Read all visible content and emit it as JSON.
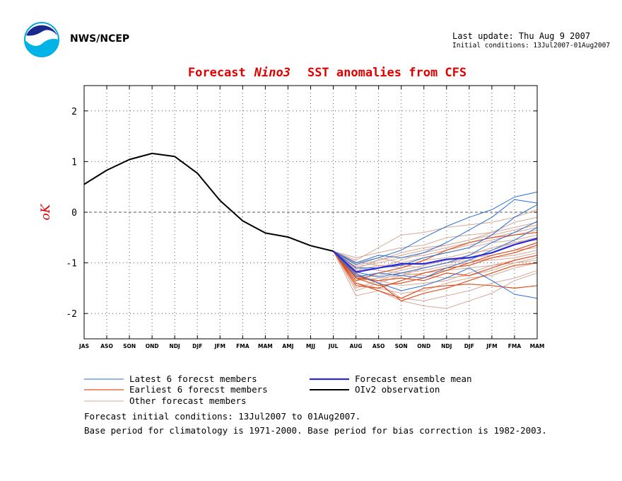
{
  "header": {
    "org": "NWS/NCEP",
    "last_update": "Last update: Thu Aug 9 2007",
    "initial_conditions": "Initial conditions: 13Jul2007-01Aug2007"
  },
  "chart_data": {
    "type": "line",
    "title_parts": [
      "Forecast",
      "Nino3",
      "SST anomalies from CFS"
    ],
    "ylabel": "oK",
    "ylim": [
      -2.5,
      2.5
    ],
    "yticks": [
      -2,
      -1,
      0,
      1,
      2
    ],
    "categories": [
      "JAS",
      "ASO",
      "SON",
      "OND",
      "NDJ",
      "DJF",
      "JFM",
      "FMA",
      "MAM",
      "AMJ",
      "MJJ",
      "JUL",
      "AUG",
      "ASO",
      "SON",
      "OND",
      "NDJ",
      "DJF",
      "JFM",
      "FMA",
      "MAM"
    ],
    "grid": true,
    "zero_line": "dashed",
    "colors": {
      "title": "#e00000",
      "latest": "#2a6fd6",
      "earliest": "#e0501e",
      "other": "#d6a898",
      "mean": "#2b2bd6",
      "observation": "#000000"
    },
    "observation": {
      "name": "OIv2 observation",
      "x_index": [
        0,
        1,
        2,
        3,
        4,
        5,
        6,
        7,
        8,
        9,
        10,
        11
      ],
      "values": [
        0.55,
        0.83,
        1.04,
        1.16,
        1.1,
        0.77,
        0.23,
        -0.17,
        -0.41,
        -0.49,
        -0.66,
        -0.77
      ]
    },
    "ensemble_mean": {
      "name": "Forecast ensemble mean",
      "x_index": [
        11,
        12,
        13,
        14,
        15,
        16,
        17,
        18,
        19,
        20
      ],
      "values": [
        -0.77,
        -1.18,
        -1.1,
        -1.02,
        -1.02,
        -0.93,
        -0.9,
        -0.8,
        -0.64,
        -0.52
      ]
    },
    "latest_members": [
      [
        -0.77,
        -1.18,
        -1.28,
        -1.2,
        -1.1,
        -1.0,
        -0.85,
        -0.6,
        -0.4,
        -0.18
      ],
      [
        -0.77,
        -1.03,
        -0.9,
        -0.75,
        -0.5,
        -0.28,
        -0.1,
        0.05,
        0.3,
        0.4
      ],
      [
        -0.77,
        -1.1,
        -1.1,
        -1.05,
        -0.9,
        -0.8,
        -0.7,
        -0.45,
        -0.1,
        0.15
      ],
      [
        -0.77,
        -1.22,
        -1.4,
        -1.55,
        -1.45,
        -1.3,
        -1.1,
        -1.35,
        -1.62,
        -1.7
      ],
      [
        -0.77,
        -1.0,
        -0.85,
        -0.9,
        -0.8,
        -0.6,
        -0.35,
        -0.1,
        0.25,
        0.18
      ],
      [
        -0.77,
        -1.28,
        -1.2,
        -1.25,
        -1.3,
        -1.1,
        -0.95,
        -0.75,
        -0.55,
        -0.3
      ]
    ],
    "earliest_members": [
      [
        -0.77,
        -1.4,
        -1.55,
        -1.7,
        -1.5,
        -1.45,
        -1.42,
        -1.45,
        -1.5,
        -1.45
      ],
      [
        -0.77,
        -1.3,
        -1.45,
        -1.4,
        -1.3,
        -1.15,
        -1.0,
        -0.85,
        -0.75,
        -0.6
      ],
      [
        -0.77,
        -1.35,
        -1.2,
        -1.1,
        -0.95,
        -0.75,
        -0.6,
        -0.5,
        -0.45,
        -0.4
      ],
      [
        -0.77,
        -1.25,
        -1.4,
        -1.75,
        -1.6,
        -1.5,
        -1.35,
        -1.2,
        -1.05,
        -1.0
      ],
      [
        -0.77,
        -1.45,
        -1.5,
        -1.35,
        -1.2,
        -1.1,
        -1.05,
        -0.9,
        -0.8,
        -0.65
      ],
      [
        -0.77,
        -1.3,
        -1.35,
        -1.3,
        -1.35,
        -1.2,
        -1.25,
        -1.1,
        -0.95,
        -0.85
      ]
    ],
    "other_members": [
      [
        -0.77,
        -0.95,
        -0.7,
        -0.45,
        -0.4,
        -0.3,
        -0.25,
        -0.2,
        -0.1,
        0.05
      ],
      [
        -0.77,
        -1.65,
        -1.55,
        -1.75,
        -1.85,
        -1.9,
        -1.75,
        -1.6,
        -1.35,
        -1.2
      ],
      [
        -0.77,
        -1.2,
        -1.1,
        -0.95,
        -0.8,
        -0.7,
        -0.6,
        -0.5,
        -0.4,
        -0.3
      ],
      [
        -0.77,
        -1.05,
        -0.95,
        -0.85,
        -0.75,
        -0.65,
        -0.55,
        -0.45,
        -0.35,
        -0.25
      ],
      [
        -0.77,
        -1.3,
        -1.25,
        -1.15,
        -1.05,
        -0.95,
        -0.85,
        -0.7,
        -0.6,
        -0.5
      ],
      [
        -0.77,
        -1.1,
        -1.15,
        -1.2,
        -1.25,
        -1.3,
        -1.25,
        -1.15,
        -1.0,
        -0.9
      ],
      [
        -0.77,
        -1.55,
        -1.4,
        -1.25,
        -1.1,
        -1.0,
        -0.9,
        -0.85,
        -0.75,
        -0.7
      ],
      [
        -0.77,
        -0.9,
        -0.8,
        -0.7,
        -0.65,
        -0.5,
        -0.45,
        -0.4,
        -0.2,
        -0.1
      ],
      [
        -0.77,
        -1.15,
        -1.05,
        -1.05,
        -1.1,
        -1.0,
        -0.95,
        -0.95,
        -0.9,
        -0.8
      ],
      [
        -0.77,
        -1.4,
        -1.5,
        -1.6,
        -1.55,
        -1.4,
        -1.3,
        -1.25,
        -1.1,
        -1.0
      ],
      [
        -0.77,
        -1.0,
        -0.9,
        -1.0,
        -0.9,
        -0.8,
        -0.7,
        -0.6,
        -0.55,
        -0.45
      ],
      [
        -0.77,
        -1.25,
        -1.35,
        -1.45,
        -1.4,
        -1.35,
        -1.2,
        -1.05,
        -0.95,
        -0.85
      ],
      [
        -0.77,
        -1.08,
        -1.0,
        -0.9,
        -0.85,
        -0.75,
        -0.65,
        -0.55,
        -0.45,
        -0.35
      ],
      [
        -0.77,
        -1.35,
        -1.3,
        -1.25,
        -1.2,
        -1.15,
        -1.1,
        -1.05,
        -1.0,
        -0.95
      ],
      [
        -0.77,
        -0.98,
        -1.05,
        -1.1,
        -0.95,
        -0.9,
        -0.8,
        -0.75,
        -0.6,
        -0.55
      ],
      [
        -0.77,
        -1.2,
        -1.4,
        -1.7,
        -1.75,
        -1.65,
        -1.55,
        -1.4,
        -1.3,
        -1.15
      ],
      [
        -0.77,
        -1.12,
        -0.95,
        -0.8,
        -0.7,
        -0.65,
        -0.55,
        -0.4,
        -0.3,
        -0.2
      ],
      [
        -0.77,
        -1.5,
        -1.35,
        -1.2,
        -1.15,
        -1.05,
        -1.0,
        -0.9,
        -0.85,
        -0.75
      ]
    ],
    "legend": [
      {
        "label": "Latest 6 forecst members",
        "key": "latest"
      },
      {
        "label": "Forecast ensemble mean",
        "key": "mean"
      },
      {
        "label": "Earliest 6 forecst members",
        "key": "earliest"
      },
      {
        "label": "OIv2 observation",
        "key": "observation"
      },
      {
        "label": "Other forecast members",
        "key": "other"
      }
    ]
  },
  "notes": {
    "line1": "Forecast initial conditions: 13Jul2007 to 01Aug2007.",
    "line2": "Base period for climatology is 1971-2000. Base period for bias correction is 1982-2003."
  }
}
